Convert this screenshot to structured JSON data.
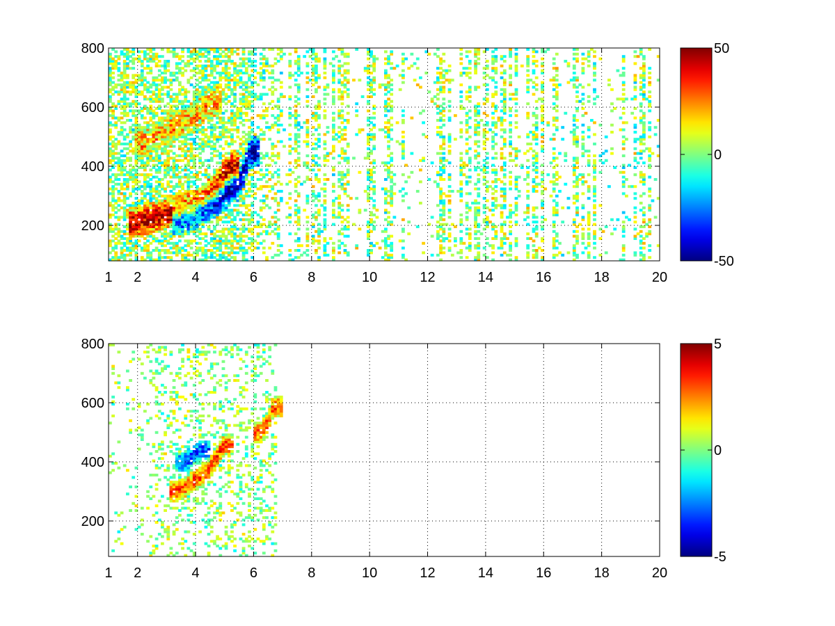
{
  "chart_data": [
    {
      "type": "heatmap",
      "title": "",
      "xlabel": "",
      "ylabel": "",
      "xlim": [
        1,
        20
      ],
      "ylim": [
        80,
        800
      ],
      "x_ticks": [
        1,
        2,
        4,
        6,
        8,
        10,
        12,
        14,
        16,
        18,
        20
      ],
      "x_tick_labels": [
        "1",
        "2",
        "4",
        "6",
        "8",
        "10",
        "12",
        "14",
        "16",
        "18",
        "20"
      ],
      "y_ticks": [
        200,
        400,
        600,
        800
      ],
      "y_tick_labels": [
        "200",
        "400",
        "600",
        "800"
      ],
      "grid": "dotted",
      "colormap": "jet",
      "clim": [
        -50,
        50
      ],
      "colorbar_ticks": [
        50,
        0,
        -50
      ],
      "colorbar_tick_labels": [
        "50",
        "0",
        "-50"
      ],
      "features": [
        {
          "name": "positive ridge",
          "x": [
            2.0,
            3.0,
            4.0,
            4.7,
            5.2
          ],
          "y": [
            210,
            240,
            270,
            330,
            400
          ],
          "value": 45
        },
        {
          "name": "negative ridge",
          "x": [
            3.5,
            4.5,
            5.5,
            5.9
          ],
          "y": [
            220,
            270,
            340,
            450
          ],
          "value": -45
        },
        {
          "name": "positive upper band",
          "x": [
            2.2,
            3.0,
            3.8,
            4.6
          ],
          "y": [
            480,
            520,
            560,
            620
          ],
          "value": 20
        }
      ]
    },
    {
      "type": "heatmap",
      "title": "",
      "xlabel": "",
      "ylabel": "",
      "xlim": [
        1,
        20
      ],
      "ylim": [
        80,
        800
      ],
      "x_ticks": [
        1,
        2,
        4,
        6,
        8,
        10,
        12,
        14,
        16,
        18,
        20
      ],
      "x_tick_labels": [
        "1",
        "2",
        "4",
        "6",
        "8",
        "10",
        "12",
        "14",
        "16",
        "18",
        "20"
      ],
      "y_ticks": [
        200,
        400,
        600,
        800
      ],
      "y_tick_labels": [
        "200",
        "400",
        "600",
        "800"
      ],
      "grid": "dotted",
      "colormap": "jet",
      "clim": [
        -5,
        5
      ],
      "colorbar_ticks": [
        5,
        0,
        -5
      ],
      "colorbar_tick_labels": [
        "5",
        "0",
        "-5"
      ],
      "features": [
        {
          "name": "positive ridge",
          "x": [
            3.4,
            4.0,
            4.5,
            5.0
          ],
          "y": [
            300,
            340,
            380,
            460
          ],
          "value": 3
        },
        {
          "name": "negative patch",
          "x": [
            3.6,
            4.2
          ],
          "y": [
            400,
            440
          ],
          "value": -3
        },
        {
          "name": "positive arc",
          "x": [
            6.3,
            6.5,
            6.7
          ],
          "y": [
            500,
            540,
            590
          ],
          "value": 3
        }
      ]
    }
  ]
}
